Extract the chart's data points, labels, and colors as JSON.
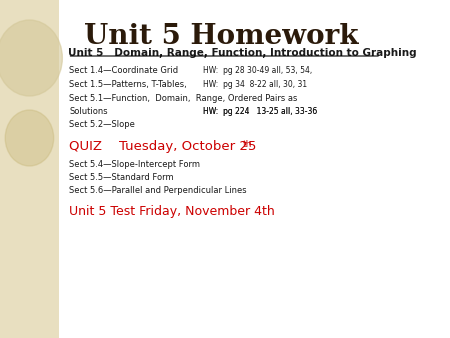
{
  "title": "Unit 5 Homework",
  "bg_color": "#f5f0e0",
  "content_bg": "#ffffff",
  "left_panel_color": "#e8dfc0",
  "title_color": "#2b1a0a",
  "body_color": "#1a1a1a",
  "red_color": "#cc0000",
  "header_line": "Unit 5   Domain, Range, Function, Introduction to Graphing",
  "lines": [
    {
      "text": "Sect 1.4—Coordinate Grid",
      "hw": "HW:  pg 28 30-49 all, 53, 54,",
      "size": "large",
      "bold": false
    },
    {
      "text": "Sect 1.5—Patterns, T-Tables,",
      "hw": "HW:  pg 34  8-22 all, 30, 31",
      "size": "large",
      "bold": false
    },
    {
      "text": "Sect 5.1—Function,  Domain,  Range, Ordered Pairs as",
      "hw": "",
      "size": "large",
      "bold": false
    },
    {
      "text": "Solutions",
      "hw": "HW:  pg 224   13-25 all, 33-36",
      "size": "large",
      "bold": false
    },
    {
      "text": "Sect 5.2—Slope",
      "hw": "",
      "size": "large",
      "bold": false
    },
    {
      "text": "",
      "hw": "",
      "size": "large",
      "bold": false
    },
    {
      "text": "QUIZ    Tuesday, October 25th",
      "hw": "",
      "size": "large",
      "bold": false,
      "red": true,
      "superscript": true
    },
    {
      "text": "",
      "hw": "",
      "size": "large",
      "bold": false
    },
    {
      "text": "Sect 5.4—Slope-Intercept Form",
      "hw": "",
      "size": "large",
      "bold": false
    },
    {
      "text": "Sect 5.5—Standard Form",
      "hw": "",
      "size": "large",
      "bold": false
    },
    {
      "text": "Sect 5.6—Parallel and Perpendicular Lines",
      "hw": "",
      "size": "large",
      "bold": false
    },
    {
      "text": "",
      "hw": "",
      "size": "large",
      "bold": false
    },
    {
      "text": "Unit 5 Test Friday, November 4th",
      "hw": "",
      "size": "large",
      "bold": false,
      "red": true
    }
  ]
}
